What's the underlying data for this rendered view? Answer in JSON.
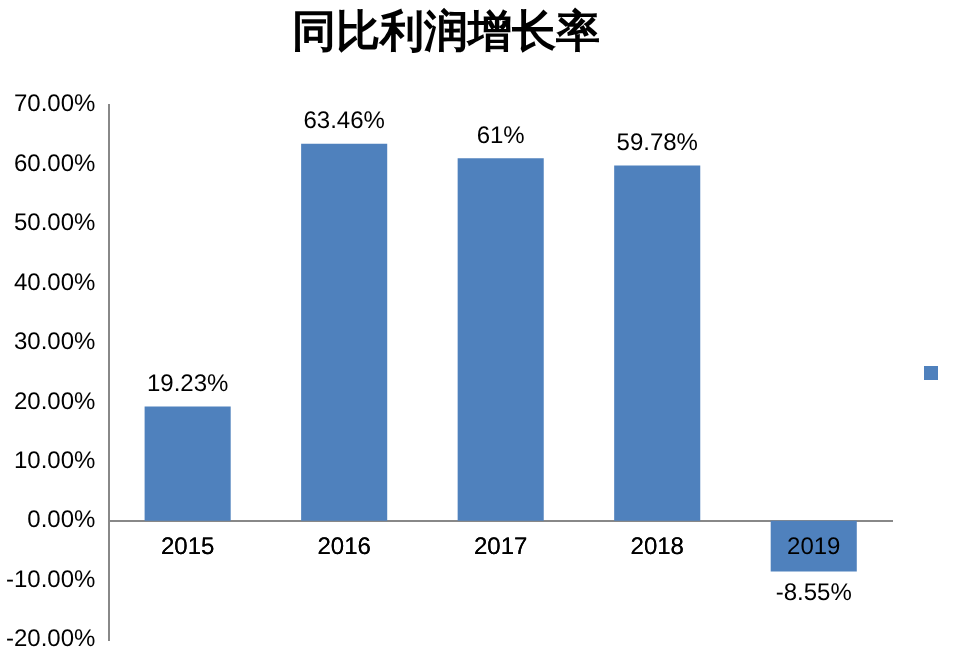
{
  "chart_data": {
    "type": "bar",
    "title": "同比利润增长率",
    "categories": [
      "2015",
      "2016",
      "2017",
      "2018",
      "2019"
    ],
    "series": [
      {
        "color": "#4f81bd",
        "values": [
          19.23,
          63.46,
          61,
          59.78,
          -8.55
        ],
        "value_labels": [
          "19.23%",
          "63.46%",
          "61%",
          "59.78%",
          "-8.55%"
        ]
      }
    ],
    "ylim": [
      -20,
      70
    ],
    "yticks": [
      {
        "value": -20,
        "label": "-20.00%"
      },
      {
        "value": -10,
        "label": "-10.00%"
      },
      {
        "value": 0,
        "label": "0.00%"
      },
      {
        "value": 10,
        "label": "10.00%"
      },
      {
        "value": 20,
        "label": "20.00%"
      },
      {
        "value": 30,
        "label": "30.00%"
      },
      {
        "value": 40,
        "label": "40.00%"
      },
      {
        "value": 50,
        "label": "50.00%"
      },
      {
        "value": 60,
        "label": "60.00%"
      },
      {
        "value": 70,
        "label": "70.00%"
      }
    ],
    "grid": false
  }
}
